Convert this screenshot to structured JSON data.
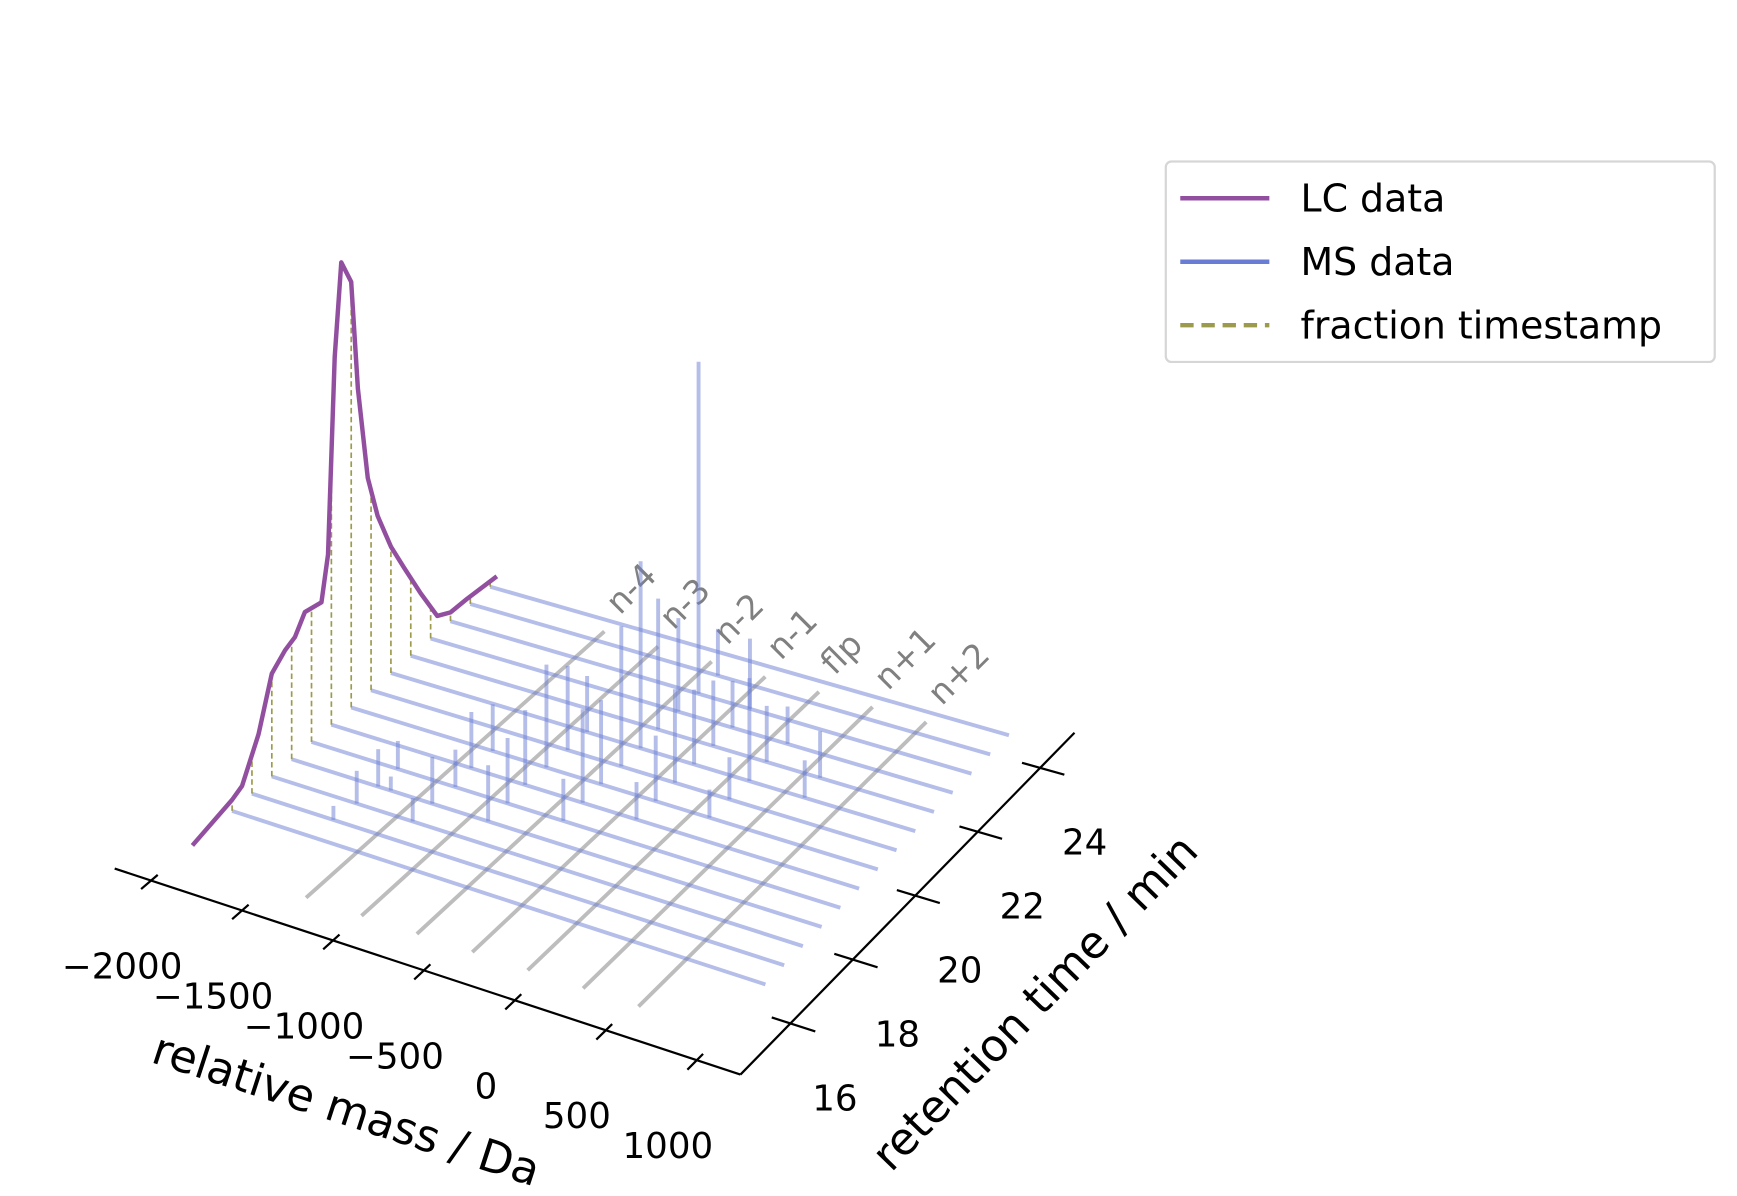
{
  "chart_data": {
    "type": "waterfall3d",
    "xlabel": "relative mass / Da",
    "ylabel": "retention time / min",
    "xlim": [
      -2200,
      1240
    ],
    "xticks": [
      {
        "value": -2000,
        "label": "−2000"
      },
      {
        "value": -1500,
        "label": "−1500"
      },
      {
        "value": -1000,
        "label": "−1000"
      },
      {
        "value": -500,
        "label": "−500"
      },
      0,
      500,
      1000
    ],
    "ylim": [
      14.4,
      25.1
    ],
    "yticks": [
      16,
      18,
      20,
      22,
      24
    ],
    "legend": "upper right",
    "lc": {
      "name": "LC data",
      "color": "#924fa0",
      "mass": -1700,
      "x": [
        14.0,
        15.2,
        15.5,
        16.0,
        16.4,
        16.8,
        17.1,
        17.4,
        17.9,
        18.1,
        18.3,
        18.5,
        18.8,
        19.0,
        19.3,
        19.6,
        20.0,
        20.4,
        20.9,
        21.4,
        21.8,
        22.3,
        23.2
      ],
      "values": [
        0,
        2.4,
        3.5,
        11.5,
        22,
        24.5,
        25.5,
        29,
        28,
        37,
        78,
        97,
        91,
        67,
        46,
        36,
        27,
        20,
        11.5,
        3.6,
        1.9,
        1.7,
        1.0
      ]
    },
    "ms": {
      "name": "MS data",
      "color": "#6a7dd4",
      "mass_range": [
        -1700,
        1240
      ],
      "spectra": [
        {
          "masses": [],
          "intensities": []
        },
        {
          "masses": [
            -1250
          ],
          "intensities": [
            3
          ]
        },
        {
          "masses": [
            -1230,
            -920
          ],
          "intensities": [
            7,
            5
          ]
        },
        {
          "masses": [
            -1220,
            -1150,
            -920,
            -610
          ],
          "intensities": [
            8,
            3,
            10,
            12
          ]
        },
        {
          "masses": [
            -1220,
            -900,
            -610,
            -300
          ],
          "intensities": [
            6,
            8,
            14,
            9
          ]
        },
        {
          "masses": [
            -920,
            -620,
            -300,
            0
          ],
          "intensities": [
            12,
            16,
            20,
            8
          ]
        },
        {
          "masses": [
            -910,
            -610,
            -305,
            0,
            300
          ],
          "intensities": [
            10,
            22,
            18,
            14,
            6
          ]
        },
        {
          "masses": [
            -600,
            -300,
            0,
            305
          ],
          "intensities": [
            18,
            30,
            20,
            9
          ]
        },
        {
          "masses": [
            -600,
            -300,
            0,
            310,
            620
          ],
          "intensities": [
            12,
            40,
            16,
            22,
            8
          ]
        },
        {
          "masses": [
            -310,
            0,
            300,
            600
          ],
          "intensities": [
            28,
            14,
            12,
            10
          ]
        },
        {
          "masses": [
            -305,
            0,
            310
          ],
          "intensities": [
            20,
            10,
            8
          ]
        },
        {
          "masses": [
            -300,
            -10
          ],
          "intensities": [
            71,
            15
          ]
        },
        {
          "masses": [
            -300
          ],
          "intensities": [
            10
          ]
        },
        {
          "masses": [],
          "intensities": []
        }
      ]
    },
    "fractions": {
      "name": "fraction timestamp",
      "color": "#9c9a4c",
      "times": [
        15.2,
        15.8,
        16.4,
        17.0,
        17.6,
        18.2,
        18.8,
        19.4,
        20.0,
        20.6,
        21.2,
        21.8,
        22.4,
        23.0
      ]
    },
    "markers": {
      "color": "#bdbdbd",
      "label_color": "#808080",
      "masses": [
        -1220,
        -915,
        -610,
        -305,
        0,
        305,
        610
      ],
      "labels": [
        "n-4",
        "n-3",
        "n-2",
        "n-1",
        "flp",
        "n+1",
        "n+2"
      ]
    }
  }
}
